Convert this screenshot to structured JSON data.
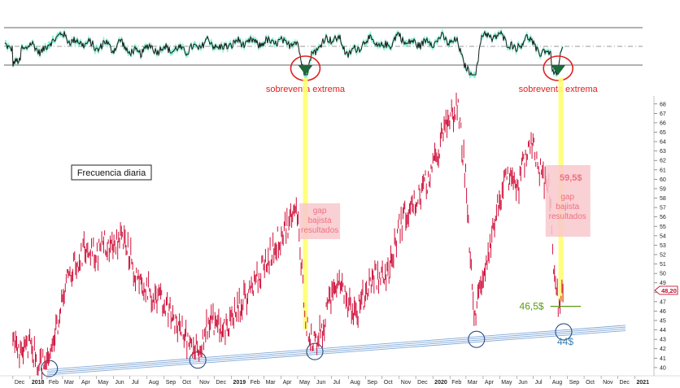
{
  "chart_data": [
    {
      "type": "line",
      "panel": "oscillator",
      "title": "",
      "ylim": [
        0,
        100
      ],
      "reference_lines": [
        "upper",
        "mid",
        "lower"
      ],
      "annotations": [
        {
          "text": "sobreventa extrema",
          "at": "2019-05"
        },
        {
          "text": "sobreventa extrema",
          "at": "2020-08"
        }
      ],
      "colors": {
        "line": "#1a1a1a",
        "fill": "#2ee8b0",
        "circle": "#e02020",
        "label": "#e02020"
      }
    },
    {
      "type": "bar",
      "subtype": "price-bars",
      "title": "",
      "frequency_label": "Frecuencia diaria",
      "series": [
        {
          "color": "#d0103a",
          "points": [
            [
              "2017-12-01",
              42.5
            ],
            [
              "2017-12-15",
              41.5
            ],
            [
              "2018-01-01",
              42.2
            ],
            [
              "2018-01-15",
              40.8
            ],
            [
              "2018-02-01",
              39.8
            ],
            [
              "2018-02-15",
              43.5
            ],
            [
              "2018-03-01",
              47.5
            ],
            [
              "2018-03-15",
              50.0
            ],
            [
              "2018-04-01",
              51.5
            ],
            [
              "2018-04-15",
              53.0
            ],
            [
              "2018-05-01",
              52.0
            ],
            [
              "2018-05-15",
              53.2
            ],
            [
              "2018-06-01",
              52.5
            ],
            [
              "2018-06-15",
              54.0
            ],
            [
              "2018-07-01",
              52.0
            ],
            [
              "2018-07-15",
              49.0
            ],
            [
              "2018-08-01",
              48.5
            ],
            [
              "2018-08-15",
              47.5
            ],
            [
              "2018-09-01",
              46.5
            ],
            [
              "2018-09-15",
              45.5
            ],
            [
              "2018-10-01",
              44.0
            ],
            [
              "2018-10-15",
              42.8
            ],
            [
              "2018-11-01",
              42.0
            ],
            [
              "2018-11-15",
              44.0
            ],
            [
              "2018-12-01",
              45.0
            ],
            [
              "2018-12-15",
              43.8
            ],
            [
              "2019-01-01",
              45.0
            ],
            [
              "2019-01-15",
              46.5
            ],
            [
              "2019-02-01",
              48.0
            ],
            [
              "2019-02-15",
              49.5
            ],
            [
              "2019-03-01",
              50.5
            ],
            [
              "2019-03-15",
              52.5
            ],
            [
              "2019-04-01",
              54.0
            ],
            [
              "2019-04-15",
              55.5
            ],
            [
              "2019-05-01",
              56.5
            ],
            [
              "2019-05-08",
              51.0
            ],
            [
              "2019-05-15",
              44.5
            ],
            [
              "2019-06-01",
              42.5
            ],
            [
              "2019-06-15",
              44.0
            ],
            [
              "2019-07-01",
              47.5
            ],
            [
              "2019-07-15",
              50.0
            ],
            [
              "2019-08-01",
              47.0
            ],
            [
              "2019-08-15",
              45.5
            ],
            [
              "2019-09-01",
              48.0
            ],
            [
              "2019-09-15",
              50.0
            ],
            [
              "2019-10-01",
              49.5
            ],
            [
              "2019-10-15",
              50.5
            ],
            [
              "2019-11-01",
              55.0
            ],
            [
              "2019-11-15",
              56.5
            ],
            [
              "2019-12-01",
              57.5
            ],
            [
              "2019-12-15",
              59.0
            ],
            [
              "2020-01-01",
              61.0
            ],
            [
              "2020-01-15",
              64.0
            ],
            [
              "2020-02-01",
              66.5
            ],
            [
              "2020-02-15",
              67.5
            ],
            [
              "2020-03-01",
              60.0
            ],
            [
              "2020-03-15",
              45.0
            ],
            [
              "2020-04-01",
              50.0
            ],
            [
              "2020-04-15",
              53.5
            ],
            [
              "2020-05-01",
              58.0
            ],
            [
              "2020-05-15",
              60.0
            ],
            [
              "2020-06-01",
              58.5
            ],
            [
              "2020-06-15",
              62.0
            ],
            [
              "2020-07-01",
              63.5
            ],
            [
              "2020-07-15",
              60.5
            ],
            [
              "2020-08-01",
              58.5
            ],
            [
              "2020-08-06",
              50.0
            ],
            [
              "2020-08-15",
              47.0
            ],
            [
              "2020-08-25",
              48.2
            ]
          ]
        }
      ],
      "x_ticks": [
        "Dec",
        "2018",
        "Feb",
        "Mar",
        "Apr",
        "May",
        "Jun",
        "Jul",
        "Aug",
        "Sep",
        "Oct",
        "Nov",
        "Dec",
        "2019",
        "Feb",
        "Mar",
        "Apr",
        "May",
        "Jun",
        "Jul",
        "Aug",
        "Sep",
        "Oct",
        "Nov",
        "Dec",
        "2020",
        "Feb",
        "Mar",
        "Apr",
        "May",
        "Jun",
        "Jul",
        "Aug",
        "Sep",
        "Oct",
        "Nov",
        "Dec",
        "2021"
      ],
      "xlim": [
        "2017-11-15",
        "2021-01-15"
      ],
      "ylim": [
        39.3,
        68.5
      ],
      "y_ticks": [
        40,
        41,
        42,
        43,
        44,
        45,
        46,
        47,
        48,
        49,
        50,
        51,
        52,
        53,
        54,
        55,
        56,
        57,
        58,
        59,
        60,
        61,
        62,
        63,
        64,
        65,
        66,
        67,
        68
      ],
      "last_value_label": "48,20",
      "support_trendline": {
        "start": [
          "2018-02-01",
          39.6
        ],
        "end": [
          "2020-12-15",
          44.3
        ]
      },
      "support_touches": [
        [
          "2018-02-05",
          39.9
        ],
        [
          "2018-11-01",
          40.8
        ],
        [
          "2019-06-01",
          41.7
        ],
        [
          "2020-03-20",
          43.0
        ],
        [
          "2020-08-25",
          43.8
        ]
      ],
      "annotations": [
        {
          "text": "gap bajista resultados",
          "lines": [
            "gap",
            "bajista",
            "resultados"
          ]
        },
        {
          "text": "59,5$"
        },
        {
          "text": "gap bajista resultados",
          "lines": [
            "gap",
            "bajista",
            "resultados"
          ]
        },
        {
          "text": "46,5$",
          "value": 46.5
        },
        {
          "text": "44$",
          "value": 44
        }
      ],
      "colors": {
        "bars": "#d0103a",
        "trendline": "#7fa8d8",
        "circle": "#2a4a80",
        "highlight": "#ffff70",
        "gapbox": "#f8c8cc",
        "gaptext": "#f07080",
        "support_green": "#5a9a10",
        "target_blue": "#3a80b0"
      }
    }
  ]
}
